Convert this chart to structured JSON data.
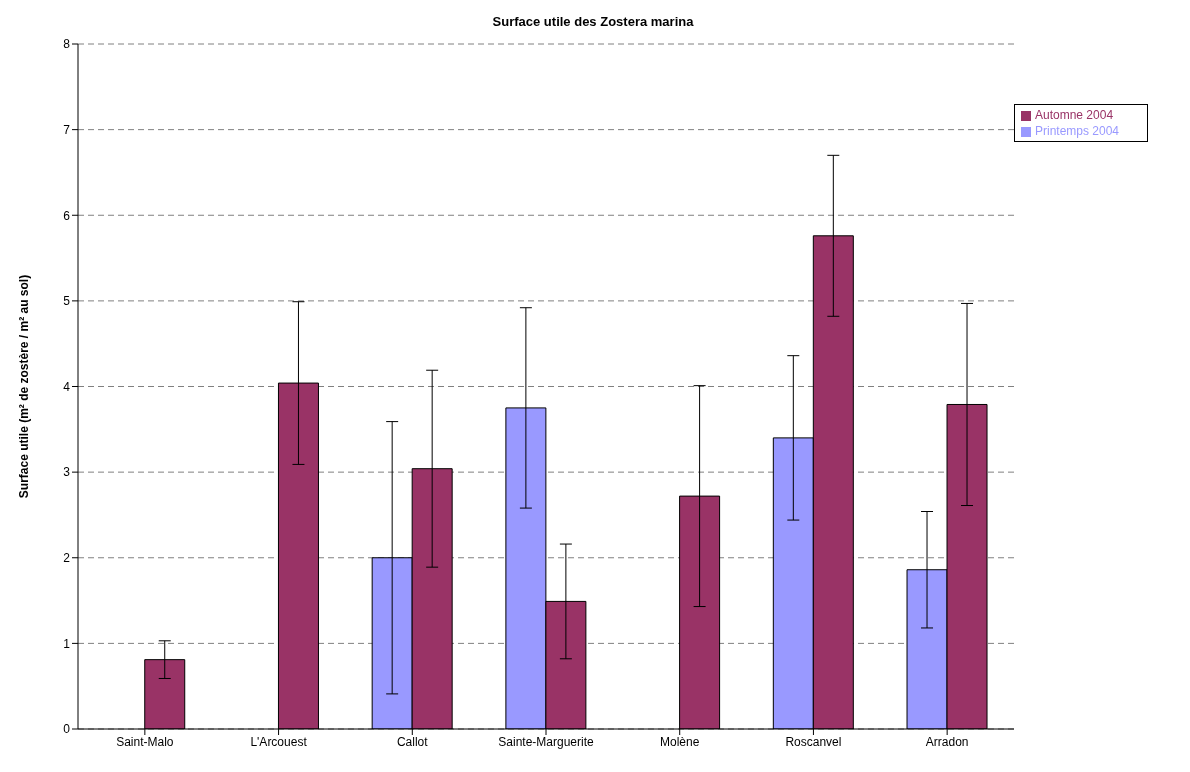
{
  "chart_data": {
    "type": "bar",
    "title": "Surface utile des Zostera marina",
    "ylabel": "Surface utile (m² de zostère / m² au sol)",
    "categories": [
      "Saint-Malo",
      "L'Arcouest",
      "Callot",
      "Sainte-Marguerite",
      "Molène",
      "Roscanvel",
      "Arradon"
    ],
    "series": [
      {
        "name": "Printemps 2004",
        "color": "#9999ff",
        "values": [
          null,
          0,
          2.0,
          3.75,
          0,
          3.4,
          1.86
        ],
        "errors": [
          null,
          0,
          1.59,
          1.17,
          0,
          0.96,
          0.68
        ]
      },
      {
        "name": "Automne 2004",
        "color": "#993366",
        "values": [
          0.81,
          4.04,
          3.04,
          1.49,
          2.72,
          5.76,
          3.79
        ],
        "errors": [
          0.22,
          0.95,
          1.15,
          0.67,
          1.29,
          0.94,
          1.18
        ]
      }
    ],
    "ylim": [
      0,
      8
    ],
    "yticks": [
      0,
      1,
      2,
      3,
      4,
      5,
      6,
      7,
      8
    ],
    "grid": "y",
    "legend": "top right"
  }
}
